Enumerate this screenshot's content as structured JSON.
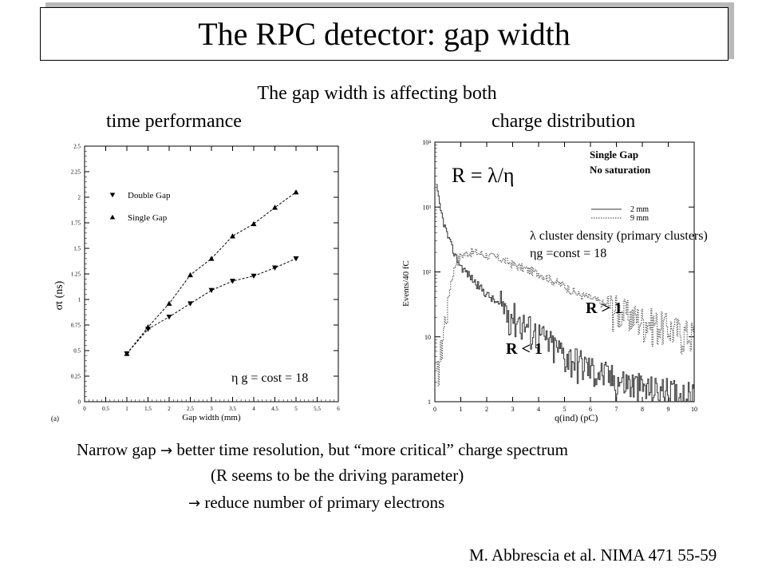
{
  "slide": {
    "title": "The RPC detector: gap width",
    "subtitle": "The gap width is affecting both",
    "col_left_label": "time performance",
    "col_right_label": "charge distribution",
    "bullet1_text": "Narrow gap",
    "bullet1_rest": "better time resolution, but “more critical” charge spectrum",
    "bullet2_text": "(R seems to be the driving parameter)",
    "bullet3_text": "reduce number of primary electrons",
    "arrow_glyph": "→",
    "citation": "M. Abbrescia et al. NIMA 471 55-59"
  },
  "annotations": {
    "r_formula": "R = λ/η",
    "lambda_note": "λ cluster density (primary clusters)",
    "eta_note": "ηg =const = 18",
    "r_gt": "R > 1",
    "r_lt": "R < 1"
  },
  "chart_data": [
    {
      "type": "line",
      "xlabel": "Gap width (mm)",
      "ylabel": "σt (ns)",
      "panel_label": "(a)",
      "annotation": "η g = cost = 18",
      "xlim": [
        0,
        6
      ],
      "ylim": [
        0,
        2.5
      ],
      "xticks": [
        "0",
        "0.5",
        "1",
        "1.5",
        "2",
        "2.5",
        "3",
        "3.5",
        "4",
        "4.5",
        "5",
        "5.5",
        "6"
      ],
      "yticks": [
        "0",
        "0.25",
        "0.5",
        "0.75",
        "1",
        "1.25",
        "1.5",
        "1.75",
        "2",
        "2.25",
        "2.5"
      ],
      "legend": "top-left",
      "series": [
        {
          "name": "Double Gap",
          "marker": "triangle-down",
          "x": [
            1,
            1.5,
            2,
            2.5,
            3,
            3.5,
            4,
            4.5,
            5
          ],
          "y": [
            0.47,
            0.71,
            0.83,
            0.96,
            1.09,
            1.18,
            1.23,
            1.31,
            1.4
          ]
        },
        {
          "name": "Single Gap",
          "marker": "triangle-up",
          "x": [
            1,
            1.5,
            2,
            2.5,
            3,
            3.5,
            4,
            4.5,
            5
          ],
          "y": [
            0.47,
            0.73,
            0.96,
            1.24,
            1.4,
            1.62,
            1.74,
            1.9,
            2.05
          ]
        }
      ]
    },
    {
      "type": "line",
      "xlabel": "q(ind) (pC)",
      "ylabel": "Events/40 fC",
      "yscale": "log",
      "xlim": [
        0,
        10
      ],
      "ylim": [
        1,
        10000
      ],
      "xticks": [
        "0",
        "1",
        "2",
        "3",
        "4",
        "5",
        "6",
        "7",
        "8",
        "9",
        "10"
      ],
      "yticks": [
        "1",
        "10",
        "10²",
        "10³",
        "10⁴"
      ],
      "legend_title": [
        "Single Gap",
        "No saturation"
      ],
      "legend": "top-right",
      "series": [
        {
          "name": "2 mm",
          "style": "solid",
          "x": [
            0.05,
            0.2,
            0.4,
            0.6,
            0.8,
            1.0,
            1.3,
            1.6,
            2.0,
            2.5,
            3.0,
            3.5,
            4.0,
            4.5,
            5.0,
            5.5,
            6.0,
            6.5,
            7.0,
            7.5,
            8.0,
            8.5,
            9.0,
            9.5,
            10.0
          ],
          "y": [
            2000,
            900,
            450,
            260,
            170,
            120,
            90,
            65,
            45,
            30,
            20,
            14,
            10,
            7,
            5,
            4,
            3,
            2.5,
            2,
            1.8,
            1.5,
            1.4,
            1.3,
            1.2,
            1.1
          ]
        },
        {
          "name": "9 mm",
          "style": "dotted",
          "x": [
            0.05,
            0.2,
            0.4,
            0.6,
            0.8,
            1.0,
            1.3,
            1.6,
            2.0,
            2.5,
            3.0,
            3.5,
            4.0,
            4.5,
            5.0,
            5.5,
            6.0,
            6.5,
            7.0,
            7.5,
            8.0,
            8.5,
            9.0,
            9.5,
            10.0
          ],
          "y": [
            2,
            5,
            20,
            70,
            140,
            180,
            200,
            200,
            180,
            160,
            130,
            110,
            95,
            75,
            60,
            45,
            40,
            32,
            25,
            20,
            17,
            15,
            13,
            11,
            10
          ]
        }
      ]
    }
  ]
}
